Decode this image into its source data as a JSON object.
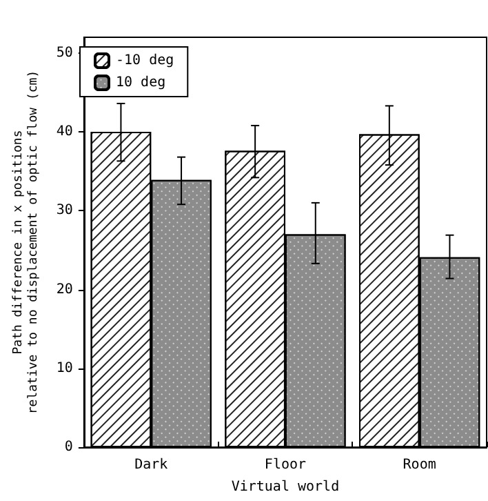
{
  "chart_data": {
    "type": "bar",
    "xlabel": "Virtual world",
    "ylabel": "Path difference in x positions\nrelative to no displacement of optic flow (cm)",
    "categories": [
      "Dark",
      "Floor",
      "Room"
    ],
    "series": [
      {
        "name": "-10 deg",
        "color": "#ffffff",
        "values": [
          40.0,
          37.6,
          39.7
        ],
        "errors": [
          [
            36.3,
            43.6
          ],
          [
            34.2,
            40.8
          ],
          [
            35.8,
            43.3
          ]
        ]
      },
      {
        "name": "10 deg",
        "color": "#8c8c8c",
        "values": [
          33.9,
          27.0,
          24.1
        ],
        "errors": [
          [
            30.8,
            36.8
          ],
          [
            23.3,
            31.0
          ],
          [
            21.4,
            26.9
          ]
        ]
      }
    ],
    "ylim": [
      0,
      52
    ],
    "yticks": [
      0,
      10,
      20,
      30,
      40,
      50
    ],
    "grid": false,
    "legend": "top left"
  }
}
